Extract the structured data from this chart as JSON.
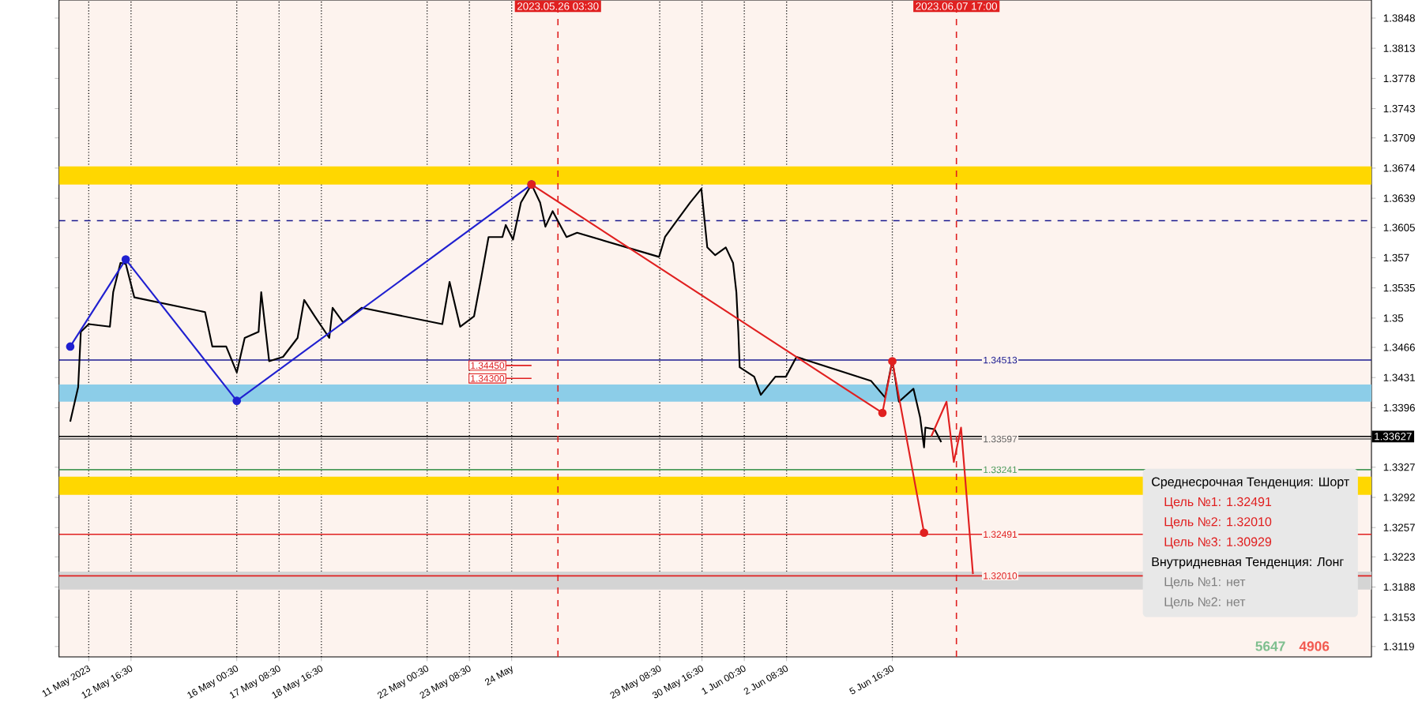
{
  "chart_data": {
    "type": "line",
    "xlim": [
      "2023-05-10T10:00",
      "2023-06-20T19:00"
    ],
    "ylim": [
      1.3107,
      1.3869
    ],
    "xticks": [
      {
        "value": "2023-05-11T08:30",
        "label": "11 May 2023"
      },
      {
        "value": "2023-05-12T16:30",
        "label": "12 May 16:30"
      },
      {
        "value": "2023-05-16T00:30",
        "label": "16 May 00:30"
      },
      {
        "value": "2023-05-17T08:30",
        "label": "17 May 08:30"
      },
      {
        "value": "2023-05-18T16:30",
        "label": "18 May 16:30"
      },
      {
        "value": "2023-05-22T00:30",
        "label": "22 May 00:30"
      },
      {
        "value": "2023-05-23T08:30",
        "label": "23 May 08:30"
      },
      {
        "value": "2023-05-24T16:30",
        "label": "24 May"
      },
      {
        "value": "2023-05-29T08:30",
        "label": "29 May 08:30"
      },
      {
        "value": "2023-05-30T16:30",
        "label": "30 May 16:30"
      },
      {
        "value": "2023-06-01T00:30",
        "label": "1 Jun 00:30"
      },
      {
        "value": "2023-06-02T08:30",
        "label": "2 Jun 08:30"
      },
      {
        "value": "2023-06-05T16:30",
        "label": "5 Jun 16:30"
      }
    ],
    "yticks": [
      1.3848,
      1.3813,
      1.3778,
      1.3743,
      1.3709,
      1.3674,
      1.3639,
      1.3605,
      1.357,
      1.3535,
      1.35,
      1.3466,
      1.3431,
      1.3396,
      1.3327,
      1.3292,
      1.3257,
      1.3223,
      1.3188,
      1.3153,
      1.3119
    ],
    "grid": "x",
    "series": [
      {
        "color": "#000000",
        "marker": "none",
        "x": [
          "2023-05-10T18:30",
          "2023-05-11T00:30",
          "2023-05-11T02:30",
          "2023-05-11T08:30",
          "2023-05-12T00:30",
          "2023-05-12T03:00",
          "2023-05-12T08:30",
          "2023-05-12T12:30",
          "2023-05-12T19:00",
          "2023-05-15T00:30",
          "2023-05-15T06:00",
          "2023-05-15T16:30",
          "2023-05-16T00:30",
          "2023-05-16T06:30",
          "2023-05-16T17:00",
          "2023-05-16T19:00",
          "2023-05-17T01:00",
          "2023-05-17T11:30",
          "2023-05-17T22:30",
          "2023-05-18T03:30",
          "2023-05-18T11:30",
          "2023-05-18T22:30",
          "2023-05-19T01:00",
          "2023-05-19T09:00",
          "2023-05-19T23:00",
          "2023-05-22T12:00",
          "2023-05-22T17:30",
          "2023-05-23T01:30",
          "2023-05-23T12:00",
          "2023-05-23T17:30",
          "2023-05-23T23:00",
          "2023-05-24T09:30",
          "2023-05-24T12:00",
          "2023-05-24T17:30",
          "2023-05-24T23:30",
          "2023-05-25T07:30",
          "2023-05-25T14:00",
          "2023-05-25T18:00",
          "2023-05-25T23:30",
          "2023-05-26T10:00",
          "2023-05-26T18:00",
          "2023-05-29T08:00",
          "2023-05-29T12:30",
          "2023-05-29T20:30",
          "2023-05-30T07:30",
          "2023-05-30T16:00",
          "2023-05-30T20:30",
          "2023-05-31T02:30",
          "2023-05-31T10:30",
          "2023-05-31T16:00",
          "2023-05-31T18:30",
          "2023-05-31T20:00",
          "2023-05-31T21:00",
          "2023-06-01T08:00",
          "2023-06-01T13:00",
          "2023-06-02T00:00",
          "2023-06-02T08:00",
          "2023-06-02T16:00",
          "2023-06-05T00:30",
          "2023-06-05T11:00",
          "2023-06-05T16:30",
          "2023-06-05T21:30",
          "2023-06-06T08:30",
          "2023-06-06T13:30",
          "2023-06-06T16:30",
          "2023-06-06T17:30",
          "2023-06-07T00:30",
          "2023-06-07T05:30"
        ],
        "values": [
          1.338,
          1.342,
          1.3484,
          1.3493,
          1.349,
          1.353,
          1.3564,
          1.3563,
          1.3524,
          1.3507,
          1.3467,
          1.3467,
          1.3437,
          1.3477,
          1.3484,
          1.353,
          1.345,
          1.3455,
          1.3477,
          1.3521,
          1.3502,
          1.3477,
          1.3512,
          1.3495,
          1.3512,
          1.3493,
          1.3542,
          1.349,
          1.3502,
          1.3547,
          1.3594,
          1.3594,
          1.3608,
          1.3591,
          1.3634,
          1.3655,
          1.3634,
          1.3606,
          1.3624,
          1.3594,
          1.3599,
          1.3571,
          1.3594,
          1.3611,
          1.3634,
          1.365,
          1.3582,
          1.3573,
          1.3582,
          1.3564,
          1.353,
          1.3484,
          1.3443,
          1.3432,
          1.3411,
          1.3432,
          1.3432,
          1.3455,
          1.3427,
          1.3408,
          1.3451,
          1.3403,
          1.3418,
          1.3385,
          1.335,
          1.3373,
          1.3371,
          1.3356
        ]
      },
      {
        "color": "#2020d0",
        "marker": "circle",
        "x": [
          "2023-05-10T18:30",
          "2023-05-12T12:30",
          "2023-05-16T00:30",
          "2023-05-25T07:30"
        ],
        "values": [
          1.3467,
          1.3568,
          1.3404,
          1.3655
        ]
      },
      {
        "color": "#e02020",
        "marker": "circle",
        "x": [
          "2023-05-25T07:30",
          "2023-06-05T09:00",
          "2023-06-05T16:30",
          "2023-06-06T16:30"
        ],
        "values": [
          1.3655,
          1.339,
          1.345,
          1.3251
        ]
      },
      {
        "color": "#e02020",
        "marker": "none",
        "x": [
          "2023-06-06T22:00",
          "2023-06-07T09:30",
          "2023-06-07T15:00",
          "2023-06-07T20:30",
          "2023-06-08T05:30"
        ],
        "values": [
          1.3363,
          1.3403,
          1.3333,
          1.3373,
          1.3203
        ]
      }
    ],
    "bands": [
      {
        "axis": "y",
        "from": 1.3655,
        "to": 1.3676,
        "color": "#ffd700"
      },
      {
        "axis": "y",
        "from": 1.3403,
        "to": 1.3423,
        "color": "#8ccde8"
      },
      {
        "axis": "y",
        "from": 1.3295,
        "to": 1.3316,
        "color": "#ffd700"
      },
      {
        "axis": "y",
        "from": 1.3185,
        "to": 1.3206,
        "color": "#d4d4d4"
      }
    ],
    "ref_lines": [
      {
        "axis": "y",
        "value": 1.3613,
        "color": "#1a1a90",
        "line_style": "dashed"
      },
      {
        "axis": "y",
        "value": 1.33627,
        "label": "1.33627",
        "color": "#000000"
      },
      {
        "axis": "y",
        "value": 1.34513,
        "label": "1.34513",
        "color": "#1a1a90"
      },
      {
        "axis": "y",
        "value": 1.33597,
        "label": "1.33597",
        "color": "#606060"
      },
      {
        "axis": "y",
        "value": 1.33241,
        "label": "1.33241",
        "color": "#4a9a5a"
      },
      {
        "axis": "y",
        "value": 1.32491,
        "label": "1.32491",
        "color": "#e02020"
      },
      {
        "axis": "y",
        "value": 1.3201,
        "label": "1.32010",
        "color": "#e02020"
      },
      {
        "axis": "x",
        "value": "2023-05-26T03:30",
        "label": "2023.05.26 03:30",
        "color": "#e02020",
        "line_style": "dashed"
      },
      {
        "axis": "x",
        "value": "2023-06-07T17:00",
        "label": "2023.06.07 17:00",
        "color": "#e02020",
        "line_style": "dashed"
      }
    ],
    "annotations": [
      "Среднесрочная Тенденция: Шорт",
      "Цель №1: 1.32491",
      "Цель №2: 1.32010",
      "Цель №3: 1.30929",
      "Внутридневная Тенденция: Лонг",
      "Цель №1: нет",
      "Цель №2: нет",
      "5647",
      "4906",
      {
        "text": "1.34450",
        "x": "2023-05-25T07:30",
        "y": 1.3445
      },
      {
        "text": "1.34300",
        "x": "2023-05-25T07:30",
        "y": 1.343
      }
    ]
  }
}
